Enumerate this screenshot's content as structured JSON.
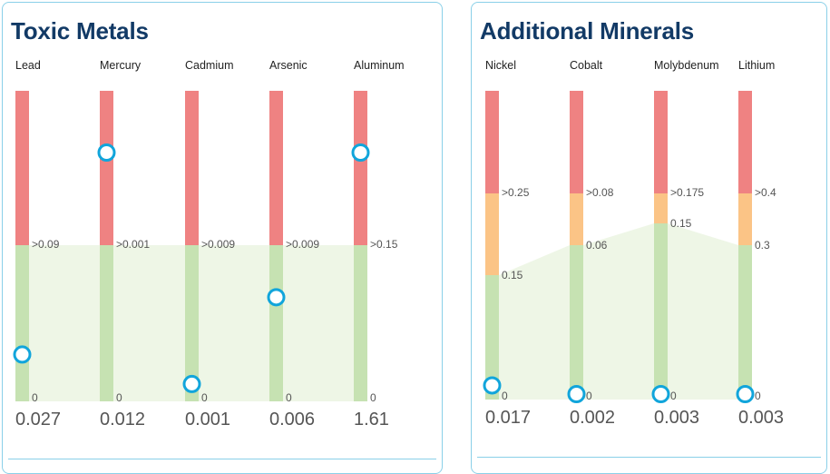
{
  "colors": {
    "high": "#ef8282",
    "elevated": "#fbc486",
    "normal": "#c6e2b2",
    "band": "#eef6e6",
    "marker": "#11a5db",
    "title": "#123a66",
    "value_text": "#555555",
    "label_text": "#222222"
  },
  "panels": [
    {
      "title": "Toxic Metals",
      "chart_data": {
        "type": "range-bar",
        "title": "Toxic Metals",
        "categories": [
          "Lead",
          "Mercury",
          "Cadmium",
          "Arsenic",
          "Aluminum"
        ],
        "values": [
          0.027,
          0.012,
          0.001,
          0.006,
          1.61
        ],
        "value_labels": [
          "0.027",
          "0.012",
          "0.001",
          "0.006",
          "1.61"
        ],
        "zones": [
          "normal",
          "high"
        ],
        "thresholds": [
          {
            "high": 0.09,
            "high_label": ">0.09"
          },
          {
            "high": 0.001,
            "high_label": ">0.001"
          },
          {
            "high": 0.009,
            "high_label": ">0.009"
          },
          {
            "high": 0.009,
            "high_label": ">0.009"
          },
          {
            "high": 0.15,
            "high_label": ">0.15"
          }
        ],
        "min_label": "0"
      }
    },
    {
      "title": "Additional Minerals",
      "chart_data": {
        "type": "range-bar",
        "title": "Additional Minerals",
        "categories": [
          "Nickel",
          "Cobalt",
          "Molybdenum",
          "Lithium"
        ],
        "values": [
          0.017,
          0.002,
          0.003,
          0.003
        ],
        "value_labels": [
          "0.017",
          "0.002",
          "0.003",
          "0.003"
        ],
        "zones": [
          "normal",
          "elevated",
          "high"
        ],
        "thresholds": [
          {
            "elevated": 0.15,
            "elevated_label": "0.15",
            "high": 0.25,
            "high_label": ">0.25"
          },
          {
            "elevated": 0.06,
            "elevated_label": "0.06",
            "high": 0.08,
            "high_label": ">0.08"
          },
          {
            "elevated": 0.15,
            "elevated_label": "0.15",
            "high": 0.175,
            "high_label": ">0.175"
          },
          {
            "elevated": 0.3,
            "elevated_label": "0.3",
            "high": 0.4,
            "high_label": ">0.4"
          }
        ],
        "min_label": "0"
      }
    }
  ]
}
